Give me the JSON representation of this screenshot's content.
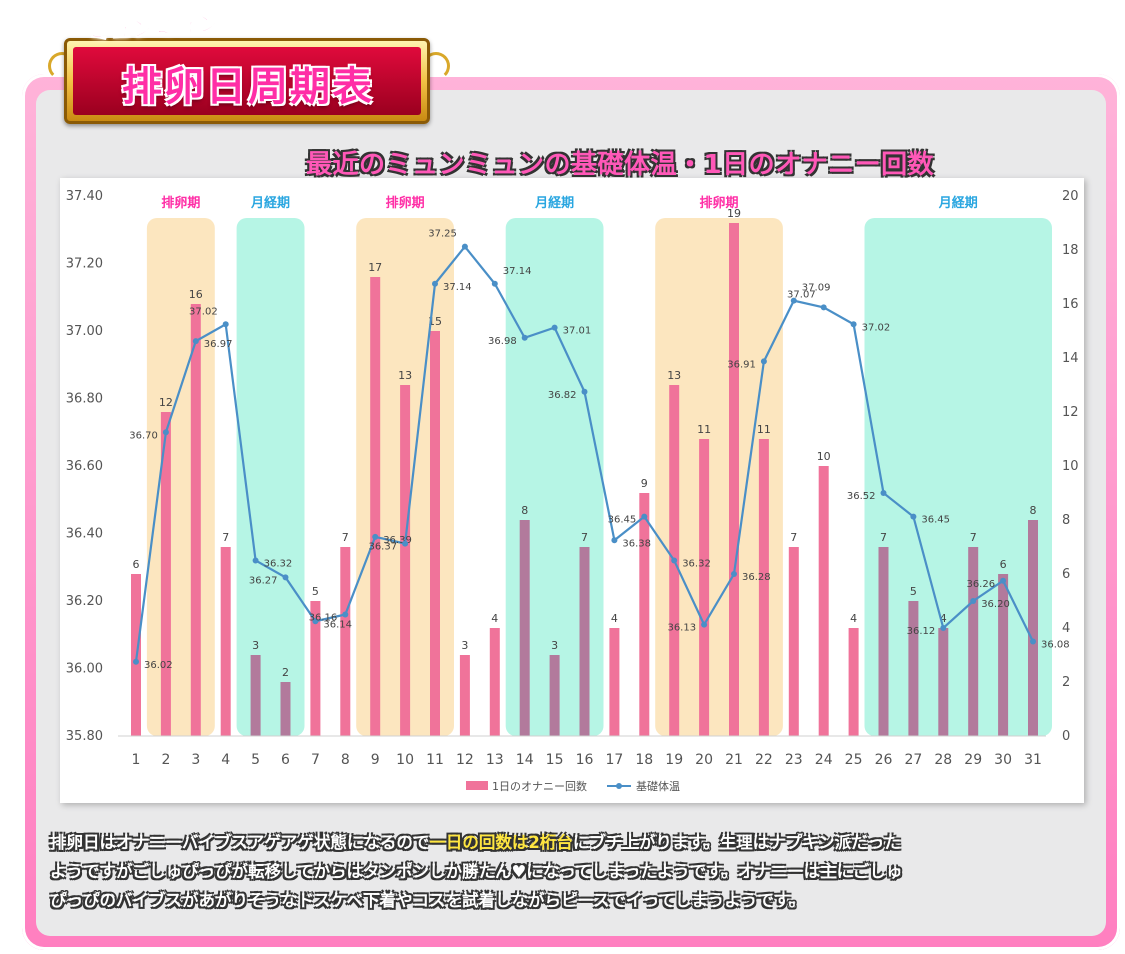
{
  "banner": {
    "subtitle": "ミュンミュン",
    "title": "排卵日周期表"
  },
  "chart_data": {
    "type": "bar+line",
    "title": "最近のミュンミュンの基礎体温・1日のオナニー回数",
    "categories": [
      "1",
      "2",
      "3",
      "4",
      "5",
      "6",
      "7",
      "8",
      "9",
      "10",
      "11",
      "12",
      "13",
      "14",
      "15",
      "16",
      "17",
      "18",
      "19",
      "20",
      "21",
      "22",
      "23",
      "24",
      "25",
      "26",
      "27",
      "28",
      "29",
      "30",
      "31"
    ],
    "left_axis": {
      "ticks": [
        "37.40",
        "37.20",
        "37.00",
        "36.80",
        "36.60",
        "36.40",
        "36.20",
        "36.00",
        "35.80"
      ],
      "range": [
        35.8,
        37.4
      ]
    },
    "right_axis": {
      "ticks": [
        "20",
        "18",
        "16",
        "14",
        "12",
        "10",
        "8",
        "6",
        "4",
        "2",
        "0"
      ],
      "range": [
        0,
        20
      ]
    },
    "series": [
      {
        "name": "1日のオナニー回数",
        "type": "bar",
        "axis": "right",
        "color": "#f0739a",
        "values": [
          6,
          12,
          16,
          7,
          3,
          2,
          5,
          7,
          17,
          13,
          15,
          3,
          4,
          8,
          3,
          7,
          4,
          9,
          13,
          11,
          19,
          11,
          7,
          10,
          4,
          7,
          5,
          4,
          7,
          6,
          8
        ]
      },
      {
        "name": "基礎体温",
        "type": "line",
        "axis": "left",
        "color": "#4a8fc7",
        "values": [
          36.02,
          36.7,
          36.97,
          37.02,
          36.32,
          36.27,
          36.14,
          36.16,
          36.39,
          36.37,
          37.14,
          37.25,
          37.14,
          36.98,
          37.01,
          36.82,
          36.38,
          36.45,
          36.32,
          36.13,
          36.28,
          36.91,
          37.09,
          37.07,
          37.02,
          36.52,
          36.45,
          36.12,
          36.2,
          36.26,
          36.08
        ],
        "labels": [
          "36.02",
          "36.70",
          "36.97",
          "37.02",
          "36.32",
          "36.27",
          "36.14",
          "36.16",
          "36.39",
          "36.37",
          "37.14",
          "37.25",
          "37.14",
          "36.98",
          "37.01",
          "36.82",
          "36.38",
          "36.45",
          "36.32",
          "36.13",
          "36.28",
          "36.91",
          "37.09",
          "37.07",
          "37.02",
          "36.52",
          "36.45",
          "36.12",
          "36.20",
          "36.26",
          "36.08"
        ]
      }
    ],
    "bands": [
      {
        "label": "排卵期",
        "kind": "ovulation",
        "start": 2,
        "end": 3,
        "color": "#fce6bf"
      },
      {
        "label": "月経期",
        "kind": "menstruation",
        "start": 5,
        "end": 6,
        "color": "#b6f5e5"
      },
      {
        "label": "排卵期",
        "kind": "ovulation",
        "start": 9,
        "end": 11,
        "color": "#fce6bf"
      },
      {
        "label": "月経期",
        "kind": "menstruation",
        "start": 14,
        "end": 16,
        "color": "#b6f5e5"
      },
      {
        "label": "排卵期",
        "kind": "ovulation",
        "start": 19,
        "end": 22,
        "color": "#fce6bf"
      },
      {
        "label": "月経期",
        "kind": "menstruation",
        "start": 26,
        "end": 31,
        "color": "#b6f5e5"
      }
    ],
    "band_label_colors": {
      "ovulation": "#ff2ea6",
      "menstruation": "#29a6e0"
    },
    "bar_color_in_menstruation": "#b27a9c",
    "legend": [
      "1日のオナニー回数",
      "基礎体温"
    ],
    "legend_position": "bottom",
    "grid": false
  },
  "caption": {
    "line1_a": "排卵日はオナニーバイブスアゲアゲ状態になるので",
    "line1_hl": "一日の回数は2桁台",
    "line1_b": "にブチ上がります。生理はナプキン派だった",
    "line2": "ようですがごしゅぴっぴが転移してからはタンポンしか勝たん♥になってしまったようです。オナニーは主にごしゅ",
    "line3": "ぴっぴのバイブスがあがりそうなドスケベ下着やコスを試着しながらピースでイってしまうようです。"
  }
}
